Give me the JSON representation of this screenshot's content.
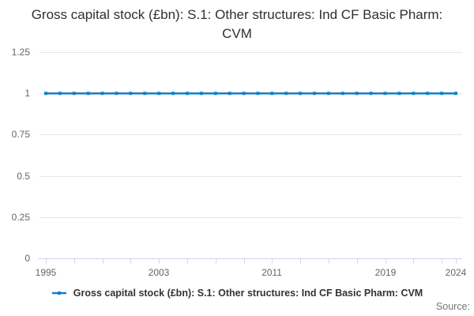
{
  "title": "Gross capital stock (£bn): S.1: Other structures: Ind CF Basic Pharm: CVM",
  "legend": {
    "label": "Gross capital stock (£bn): S.1: Other structures: Ind CF Basic Pharm: CVM"
  },
  "source_label": "Source:",
  "colors": {
    "line": "#1380c4",
    "grid": "#e6e6e6",
    "axis": "#ccd6eb",
    "axis_text": "#666666",
    "title_text": "#2f2f2f",
    "legend_text": "#333333",
    "source_text": "#757575"
  },
  "chart_data": {
    "type": "line",
    "title": "Gross capital stock (£bn): S.1: Other structures: Ind CF Basic Pharm: CVM",
    "xlabel": "",
    "ylabel": "",
    "xlim": [
      1995,
      2024
    ],
    "ylim": [
      0,
      1.25
    ],
    "grid": "horizontal",
    "legend_position": "bottom",
    "x": [
      1995,
      1996,
      1997,
      1998,
      1999,
      2000,
      2001,
      2002,
      2003,
      2004,
      2005,
      2006,
      2007,
      2008,
      2009,
      2010,
      2011,
      2012,
      2013,
      2014,
      2015,
      2016,
      2017,
      2018,
      2019,
      2020,
      2021,
      2022,
      2023,
      2024
    ],
    "series": [
      {
        "name": "Gross capital stock (£bn): S.1: Other structures: Ind CF Basic Pharm: CVM",
        "values": [
          1,
          1,
          1,
          1,
          1,
          1,
          1,
          1,
          1,
          1,
          1,
          1,
          1,
          1,
          1,
          1,
          1,
          1,
          1,
          1,
          1,
          1,
          1,
          1,
          1,
          1,
          1,
          1,
          1,
          1
        ]
      }
    ],
    "yticks": [
      0,
      0.25,
      0.5,
      0.75,
      1,
      1.25
    ],
    "ytick_labels": [
      "0",
      "0.25",
      "0.5",
      "0.75",
      "1",
      "1.25"
    ],
    "xtick_marks": [
      1995,
      1997,
      1999,
      2001,
      2003,
      2005,
      2007,
      2009,
      2011,
      2013,
      2015,
      2017,
      2019,
      2021,
      2023,
      2024
    ],
    "xtick_labels": [
      1995,
      2003,
      2011,
      2019,
      2024
    ]
  }
}
